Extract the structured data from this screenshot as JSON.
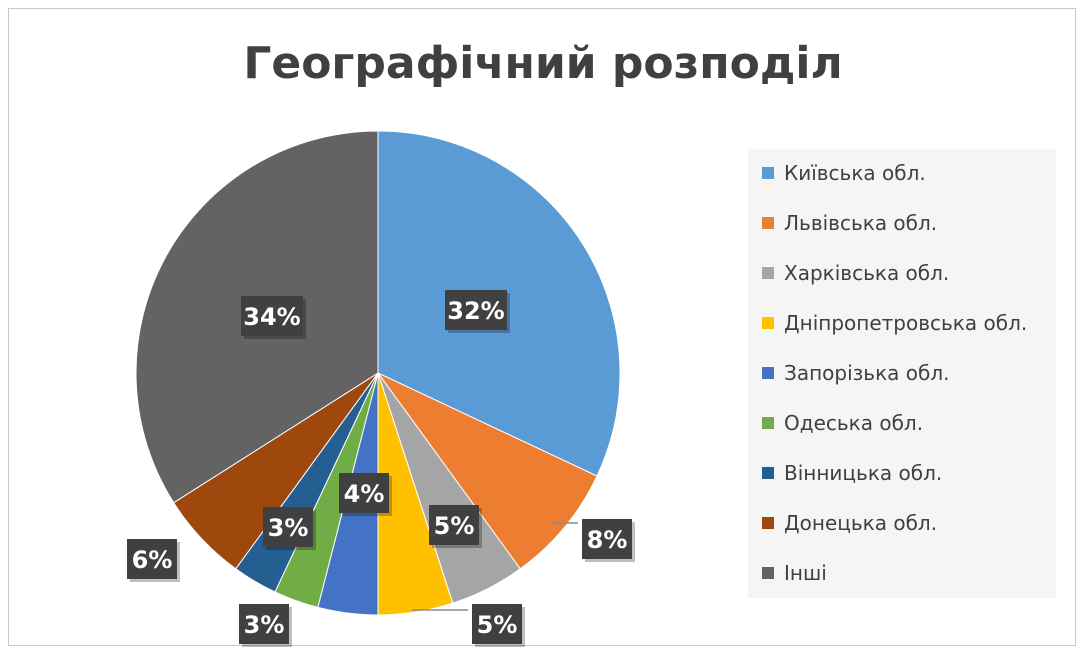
{
  "chart_data": {
    "type": "pie",
    "title": "Географічний розподіл",
    "start_angle_deg": 0,
    "direction": "clockwise",
    "slices": [
      {
        "label": "Київська обл.",
        "value": 32,
        "display": "32%",
        "color": "#5B9BD5"
      },
      {
        "label": "Львівська обл.",
        "value": 8,
        "display": "8%",
        "color": "#ED7D31"
      },
      {
        "label": "Харківська обл.",
        "value": 5,
        "display": "5%",
        "color": "#A5A5A5"
      },
      {
        "label": "Дніпропетровська обл.",
        "value": 5,
        "display": "5%",
        "color": "#FFC000"
      },
      {
        "label": "Запорізька обл.",
        "value": 4,
        "display": "4%",
        "color": "#4472C4"
      },
      {
        "label": "Одеська обл.",
        "value": 3,
        "display": "3%",
        "color": "#70AD47"
      },
      {
        "label": "Вінницька обл.",
        "value": 3,
        "display": "3%",
        "color": "#255E91"
      },
      {
        "label": "Донецька обл.",
        "value": 6,
        "display": "6%",
        "color": "#9E480E"
      },
      {
        "label": "Інші",
        "value": 34,
        "display": "34%",
        "color": "#636363"
      }
    ],
    "legend_position": "right"
  },
  "colors": {
    "label_box": "#404040",
    "label_text": "#ffffff",
    "leader_line": "#8c8c8c"
  }
}
